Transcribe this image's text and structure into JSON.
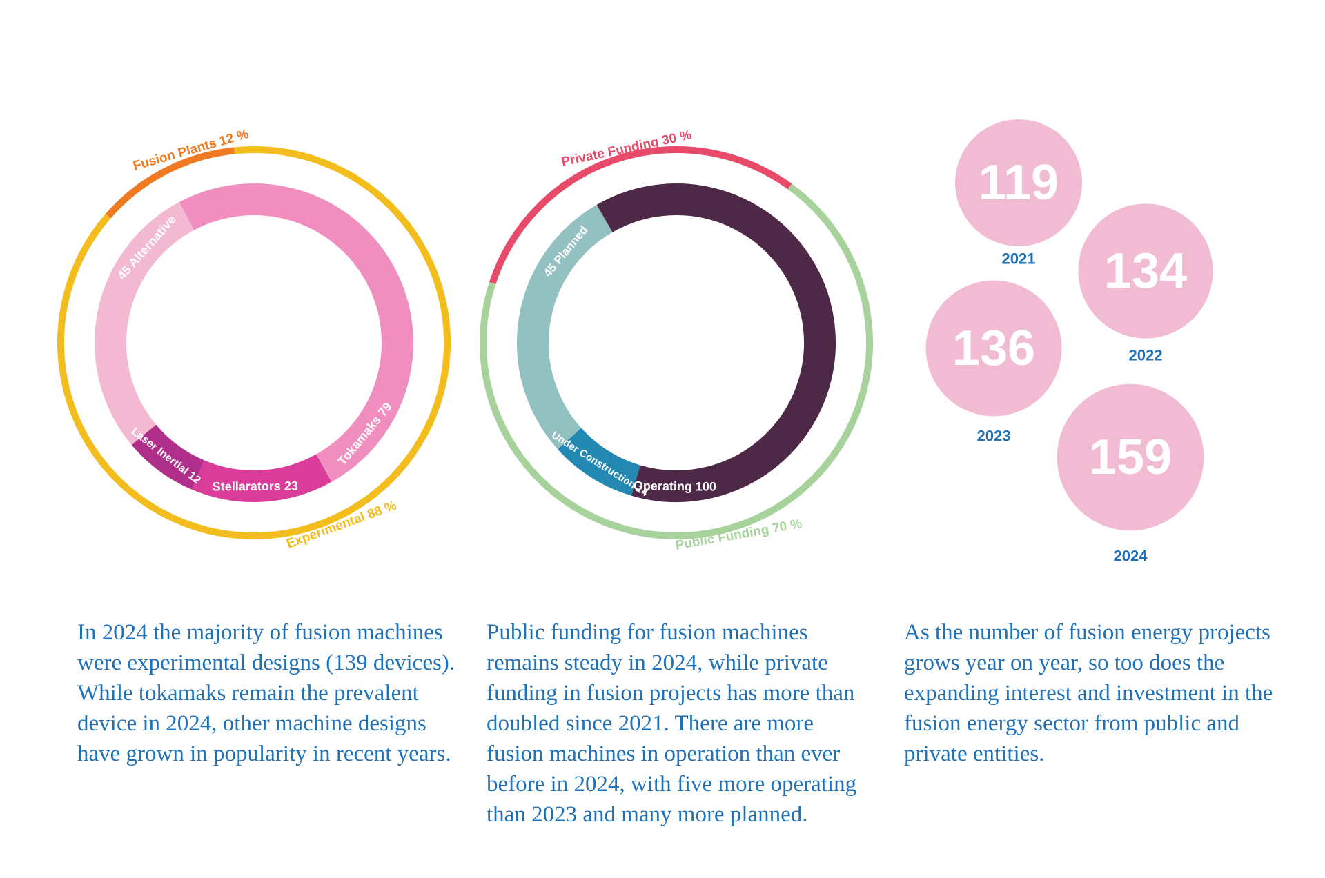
{
  "chart_data": [
    {
      "type": "donut",
      "outer": [
        {
          "label": "Fusion Plants",
          "value": "12 %",
          "pct": 12,
          "color": "#ef7a22"
        },
        {
          "label": "Experimental",
          "value": "88 %",
          "pct": 88,
          "color": "#f2bd1d"
        }
      ],
      "inner": [
        {
          "label": "Tokamaks",
          "value": 79,
          "color": "#f08fbf"
        },
        {
          "label": "Stellarators",
          "value": 23,
          "color": "#d93d99"
        },
        {
          "label": "Laser Inertial",
          "value": 12,
          "color": "#b02f8a"
        },
        {
          "label": "Alternative",
          "value": 45,
          "color": "#f3b9d3"
        }
      ]
    },
    {
      "type": "donut",
      "outer": [
        {
          "label": "Private Funding",
          "value": "30 %",
          "pct": 30,
          "color": "#e84a6a"
        },
        {
          "label": "Public Funding",
          "value": "70 %",
          "pct": 70,
          "color": "#a8d29c"
        }
      ],
      "inner": [
        {
          "label": "Operating",
          "value": 100,
          "color": "#4e2847"
        },
        {
          "label": "Under Construction",
          "value": 14,
          "color": "#2389b3"
        },
        {
          "label": "Planned",
          "value": 45,
          "color": "#93c0c0"
        }
      ]
    },
    {
      "type": "bubble",
      "color": "#f2bbd4",
      "label_color": "#1f72b8",
      "points": [
        {
          "year": "2021",
          "value": 119
        },
        {
          "year": "2022",
          "value": 134
        },
        {
          "year": "2023",
          "value": 136
        },
        {
          "year": "2024",
          "value": 159
        }
      ]
    }
  ],
  "captions": [
    "In 2024 the majority of fusion machines were experimental designs (139 devices). While tokamaks remain the prevalent device in 2024, other machine designs have grown in popularity in recent years.",
    "Public funding for fusion machines remains steady in 2024, while private funding in fusion projects has more than doubled since 2021. There are more fusion machines in operation than ever before in 2024, with five more operating than 2023 and many more planned.",
    "As the number of fusion energy projects grows year on year, so too does the expanding interest and investment in the fusion energy sector from public and private entities."
  ]
}
